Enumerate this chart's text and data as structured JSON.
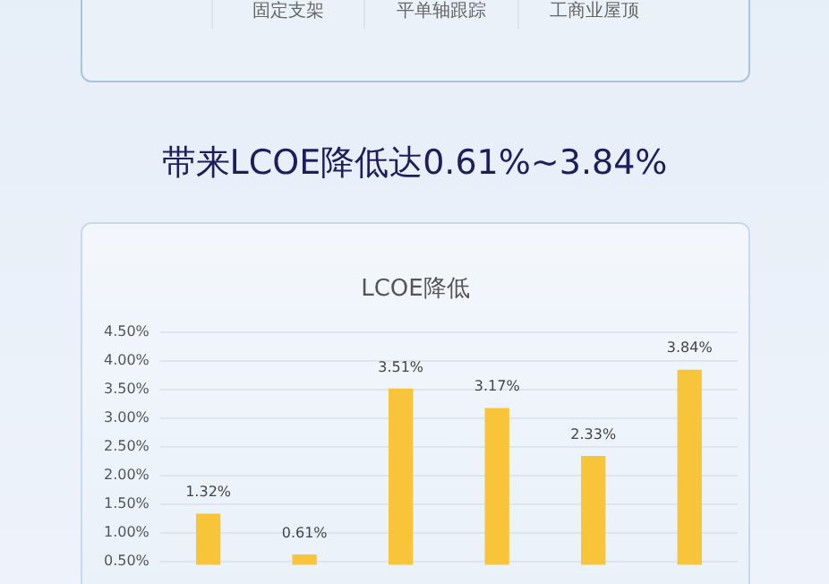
{
  "chart_data": {
    "type": "bar",
    "title": "LCOE降低",
    "subtitle": "带来LCOE降低达0.61%~3.84%",
    "annotations": [
      "固定支架",
      "平单轴跟踪",
      "工商业屋顶"
    ],
    "categories": [
      null,
      null,
      null,
      null,
      null,
      null
    ],
    "values": [
      1.32,
      0.61,
      3.51,
      3.17,
      2.33,
      3.84
    ],
    "value_labels": [
      "1.32%",
      "0.61%",
      "3.51%",
      "3.17%",
      "2.33%",
      "3.84%"
    ],
    "color": "#f8c43a",
    "ylim": [
      0.44,
      4.5
    ],
    "yticks": [
      {
        "value": 0.5,
        "label": "0.50%"
      },
      {
        "value": 1,
        "label": "1.00%"
      },
      {
        "value": 1.5,
        "label": "1.50%"
      },
      {
        "value": 2,
        "label": "2.00%"
      },
      {
        "value": 2.5,
        "label": "2.50%"
      },
      {
        "value": 3,
        "label": "3.00%"
      },
      {
        "value": 3.5,
        "label": "3.50%"
      },
      {
        "value": 4,
        "label": "4.00%"
      },
      {
        "value": 4.5,
        "label": "4.50%"
      }
    ],
    "grid": "y",
    "tick_labels": "y",
    "legend": false
  }
}
